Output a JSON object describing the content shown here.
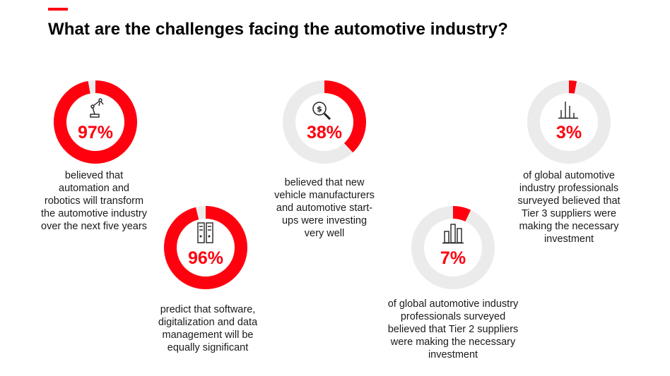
{
  "title": "What are the challenges facing the automotive industry?",
  "colors": {
    "accent": "#ff000f",
    "track": "#ebebeb",
    "text": "#1a1a1a"
  },
  "chart_data": {
    "type": "pie",
    "title": "What are the challenges facing the automotive industry?",
    "series": [
      {
        "label": "97%",
        "value": 97,
        "icon": "robot-arm-icon",
        "caption": "believed that automation and robotics will transform the automotive industry over the next five years"
      },
      {
        "label": "96%",
        "value": 96,
        "icon": "server-rack-icon",
        "caption": "predict that software, digitalization and data management will be equally significant"
      },
      {
        "label": "38%",
        "value": 38,
        "icon": "magnifier-dollar-icon",
        "caption": "believed that new vehicle manufacturers and automotive start-ups were investing very well"
      },
      {
        "label": "7%",
        "value": 7,
        "icon": "bar-chart-icon",
        "caption": "of global automotive industry professionals surveyed believed that Tier 2 suppliers were making the necessary investment"
      },
      {
        "label": "3%",
        "value": 3,
        "icon": "line-bars-icon",
        "caption": "of global automotive industry professionals surveyed believed that Tier 3 suppliers were making the necessary investment"
      }
    ]
  }
}
